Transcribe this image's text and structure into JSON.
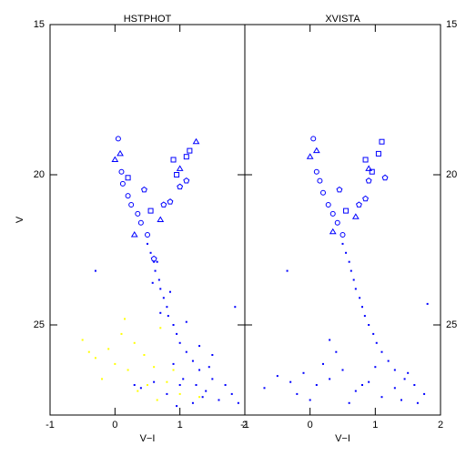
{
  "chart_data": [
    {
      "type": "scatter",
      "title": "HSTPHOT",
      "xlabel": "V−I",
      "ylabel": "V",
      "xlim": [
        -1,
        2
      ],
      "ylim": [
        28,
        15
      ],
      "xticks": [
        -1,
        0,
        1,
        2
      ],
      "yticks": [
        15,
        20,
        25
      ],
      "ytick_side": "left",
      "series": [
        {
          "color": "#0000ff",
          "marker": "dot",
          "x": [
            0.5,
            0.55,
            0.6,
            0.62,
            0.68,
            0.7,
            0.75,
            0.8,
            0.82,
            0.9,
            0.95,
            1.0,
            1.1,
            1.2,
            1.3,
            1.5,
            1.4,
            1.6,
            1.0,
            0.8,
            1.2,
            1.7,
            1.8,
            0.6,
            1.9,
            0.9,
            1.5,
            0.7,
            0.85,
            0.65,
            0.58,
            1.1,
            1.3,
            1.05,
            1.35,
            0.4,
            0.3,
            1.45,
            -0.3,
            1.85,
            0.95,
            1.25
          ],
          "values": [
            22.3,
            22.6,
            22.9,
            23.2,
            23.5,
            23.8,
            24.1,
            24.4,
            24.7,
            25.0,
            25.3,
            25.6,
            25.9,
            26.2,
            26.5,
            26.8,
            27.2,
            27.5,
            27.0,
            27.3,
            27.6,
            27.0,
            27.3,
            26.9,
            27.6,
            26.3,
            26.0,
            24.6,
            23.9,
            22.9,
            23.6,
            24.9,
            25.7,
            26.8,
            27.4,
            27.1,
            27.0,
            26.4,
            23.2,
            24.4,
            27.7,
            27.0
          ]
        },
        {
          "color": "#ffff00",
          "marker": "dot",
          "x": [
            -0.5,
            -0.3,
            -0.1,
            0.1,
            0.3,
            0.45,
            0.2,
            -0.2,
            0.6,
            0.5,
            0.8,
            0.35,
            1.0,
            0.7,
            0.15,
            -0.4,
            0.9,
            0.65,
            1.3,
            0.0
          ],
          "values": [
            25.5,
            26.1,
            25.8,
            25.3,
            25.6,
            26.0,
            26.5,
            26.8,
            26.4,
            27.0,
            26.9,
            27.2,
            27.3,
            25.1,
            24.8,
            25.9,
            26.5,
            27.5,
            27.4,
            26.3
          ]
        },
        {
          "color": "#0000ff",
          "marker": "circle",
          "x": [
            0.05,
            0.1,
            0.12,
            0.2,
            0.25,
            0.35,
            0.4,
            0.5
          ],
          "values": [
            18.8,
            19.9,
            20.3,
            20.7,
            21.0,
            21.3,
            21.6,
            22.0
          ]
        },
        {
          "color": "#0000ff",
          "marker": "triangle",
          "x": [
            0.0,
            0.08,
            1.0,
            1.25,
            0.7,
            0.3
          ],
          "values": [
            19.5,
            19.3,
            19.8,
            18.9,
            21.5,
            22.0
          ]
        },
        {
          "color": "#0000ff",
          "marker": "square",
          "x": [
            0.9,
            1.1,
            1.15,
            0.95,
            0.55,
            0.2
          ],
          "values": [
            19.5,
            19.4,
            19.2,
            20.0,
            21.2,
            20.1
          ]
        },
        {
          "color": "#0000ff",
          "marker": "pentagon",
          "x": [
            1.0,
            1.1,
            0.75,
            0.85,
            0.45,
            0.6
          ],
          "values": [
            20.4,
            20.2,
            21.0,
            20.9,
            20.5,
            22.8
          ]
        }
      ]
    },
    {
      "type": "scatter",
      "title": "XVISTA",
      "xlabel": "V−I",
      "xlim": [
        -1,
        2
      ],
      "ylim": [
        28,
        15
      ],
      "xticks": [
        -1,
        0,
        1,
        2
      ],
      "yticks": [
        15,
        20,
        25
      ],
      "ytick_side": "right",
      "series": [
        {
          "color": "#0000ff",
          "marker": "dot",
          "x": [
            0.5,
            0.55,
            0.6,
            0.63,
            0.67,
            0.7,
            0.76,
            0.8,
            0.84,
            0.9,
            0.97,
            1.02,
            1.1,
            1.2,
            1.3,
            1.45,
            1.6,
            1.75,
            -0.5,
            -0.3,
            -0.1,
            0.1,
            0.3,
            0.5,
            0.7,
            0.9,
            1.1,
            1.3,
            1.5,
            0.0,
            0.2,
            0.4,
            -0.2,
            0.6,
            0.8,
            1.0,
            1.4,
            -0.35,
            1.8,
            0.3,
            -0.7,
            1.65
          ],
          "values": [
            22.3,
            22.6,
            22.9,
            23.2,
            23.5,
            23.8,
            24.1,
            24.4,
            24.7,
            25.0,
            25.3,
            25.6,
            25.9,
            26.2,
            26.5,
            26.8,
            27.0,
            27.3,
            26.7,
            26.9,
            26.6,
            27.0,
            26.8,
            26.5,
            27.2,
            26.9,
            27.4,
            27.1,
            26.6,
            27.5,
            26.3,
            25.9,
            27.3,
            27.6,
            27.0,
            26.4,
            27.5,
            23.2,
            24.3,
            25.5,
            27.1,
            27.6
          ]
        },
        {
          "color": "#0000ff",
          "marker": "circle",
          "x": [
            0.05,
            0.1,
            0.15,
            0.2,
            0.28,
            0.35,
            0.42,
            0.5
          ],
          "values": [
            18.8,
            19.9,
            20.2,
            20.6,
            21.0,
            21.3,
            21.6,
            22.0
          ]
        },
        {
          "color": "#0000ff",
          "marker": "triangle",
          "x": [
            0.0,
            0.1,
            0.9,
            0.7,
            0.35
          ],
          "values": [
            19.4,
            19.2,
            19.8,
            21.4,
            21.9
          ]
        },
        {
          "color": "#0000ff",
          "marker": "square",
          "x": [
            0.85,
            1.05,
            1.1,
            0.95,
            0.55
          ],
          "values": [
            19.5,
            19.3,
            18.9,
            19.9,
            21.2
          ]
        },
        {
          "color": "#0000ff",
          "marker": "pentagon",
          "x": [
            0.9,
            1.15,
            0.75,
            0.85,
            0.45
          ],
          "values": [
            20.2,
            20.1,
            21.0,
            20.8,
            20.5
          ]
        }
      ]
    }
  ]
}
